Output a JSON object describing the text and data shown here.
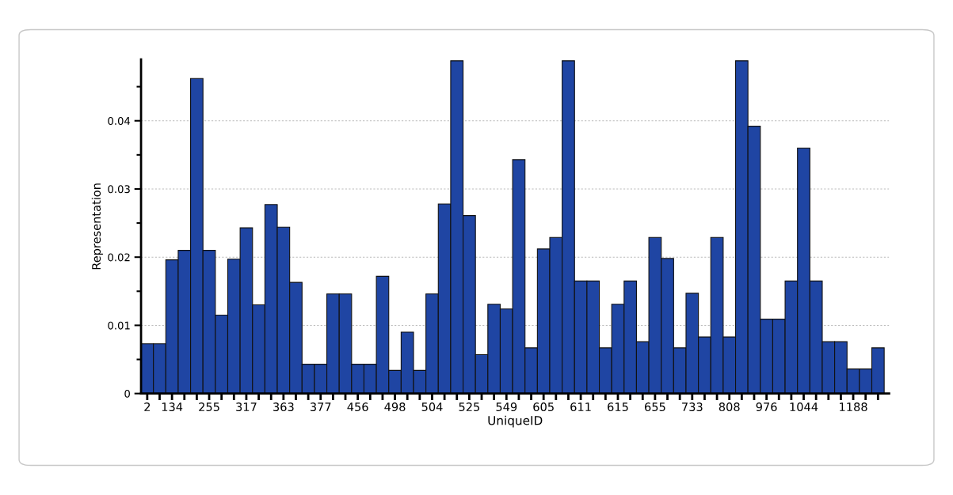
{
  "chart_data": {
    "type": "bar",
    "xlabel": "UniqueID",
    "ylabel": "Representation",
    "categories": [
      "2",
      null,
      "134",
      null,
      null,
      "255",
      null,
      null,
      "317",
      null,
      null,
      "363",
      null,
      null,
      "377",
      null,
      null,
      "456",
      null,
      null,
      "498",
      null,
      null,
      "504",
      null,
      null,
      "525",
      null,
      null,
      "549",
      null,
      null,
      "605",
      null,
      null,
      "611",
      null,
      null,
      "615",
      null,
      null,
      "655",
      null,
      null,
      "733",
      null,
      null,
      "808",
      null,
      null,
      "976",
      null,
      null,
      "1044",
      null,
      null,
      null,
      "1188",
      null,
      null
    ],
    "values": [
      0.0073,
      0.0073,
      0.0196,
      0.021,
      0.0462,
      0.021,
      0.0115,
      0.0197,
      0.0243,
      0.013,
      0.0277,
      0.0244,
      0.0163,
      0.0043,
      0.0043,
      0.0146,
      0.0146,
      0.0043,
      0.0043,
      0.0172,
      0.0034,
      0.009,
      0.0034,
      0.0146,
      0.0278,
      0.0488,
      0.0261,
      0.0057,
      0.0131,
      0.0124,
      0.0343,
      0.0067,
      0.0212,
      0.0229,
      0.0488,
      0.0165,
      0.0165,
      0.0067,
      0.0131,
      0.0165,
      0.0076,
      0.0229,
      0.0198,
      0.0067,
      0.0147,
      0.0083,
      0.0229,
      0.0083,
      0.0488,
      0.0392,
      0.0109,
      0.0109,
      0.0165,
      0.036,
      0.0165,
      0.0076,
      0.0076,
      0.0036,
      0.0036,
      0.0067
    ],
    "color": "#1f45a3",
    "ylim": [
      0,
      0.049
    ],
    "yticks": [
      0,
      0.01,
      0.02,
      0.03,
      0.04
    ],
    "grid": "y"
  }
}
